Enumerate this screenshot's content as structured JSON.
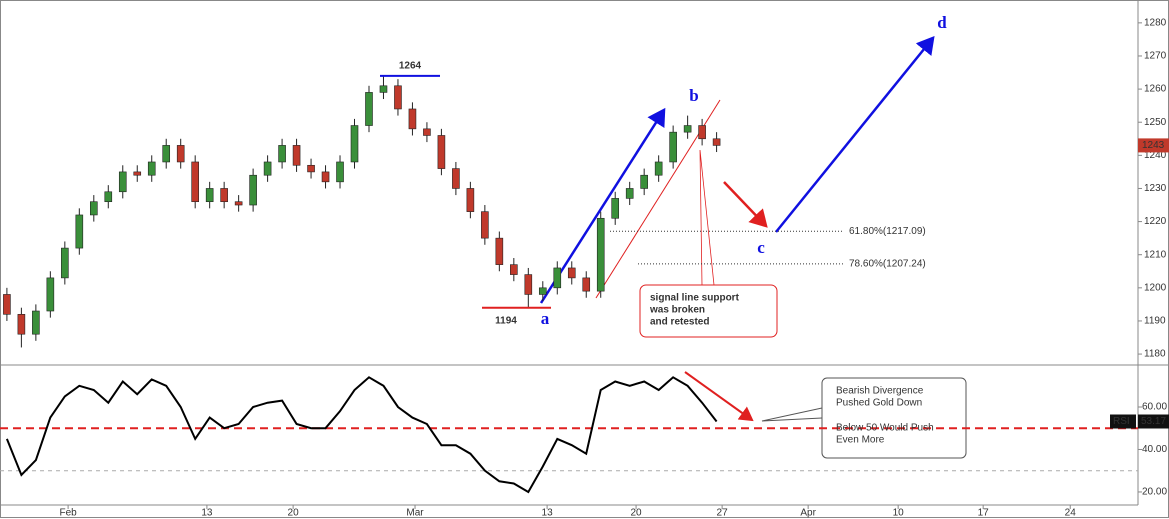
{
  "chart_data": [
    {
      "type": "candlestick",
      "x": [
        0.4,
        1.24,
        2.08,
        2.92,
        3.76,
        4.6,
        5.44,
        6.28,
        7.12,
        7.96,
        8.8,
        9.64,
        10.48,
        11.32,
        12.16,
        13,
        13.84,
        14.68,
        15.52,
        16.36,
        17.2,
        18.04,
        18.88,
        19.72,
        20.56,
        21.4,
        22.24,
        23.08,
        23.92,
        24.76,
        25.6,
        26.44,
        27.28,
        28.12,
        28.96,
        29.8,
        30.64,
        31.48,
        32.32,
        33.16,
        34,
        34.84,
        35.68,
        36.52,
        37.36,
        38.2,
        39.04,
        39.88,
        40.72,
        41.56
      ],
      "open": [
        1198,
        1192,
        1186,
        1193,
        1203,
        1212,
        1222,
        1226,
        1229,
        1235,
        1234,
        1238,
        1243,
        1238,
        1226,
        1230,
        1226,
        1225,
        1234,
        1238,
        1243,
        1237,
        1235,
        1232,
        1238,
        1249,
        1259,
        1261,
        1254,
        1248,
        1246,
        1236,
        1230,
        1223,
        1215,
        1207,
        1204,
        1198,
        1200,
        1206,
        1203,
        1199,
        1221,
        1227,
        1230,
        1234,
        1238,
        1247,
        1249,
        1245
      ],
      "high": [
        1200,
        1194,
        1195,
        1205,
        1214,
        1224,
        1228,
        1231,
        1237,
        1237,
        1240,
        1245,
        1245,
        1240,
        1232,
        1232,
        1228,
        1236,
        1240,
        1245,
        1245,
        1239,
        1237,
        1240,
        1251,
        1261,
        1264,
        1263,
        1256,
        1250,
        1248,
        1238,
        1232,
        1225,
        1217,
        1209,
        1206,
        1202,
        1208,
        1208,
        1205,
        1223,
        1229,
        1232,
        1236,
        1240,
        1249,
        1252,
        1251,
        1247
      ],
      "low": [
        1190,
        1182,
        1184,
        1191,
        1201,
        1210,
        1220,
        1224,
        1227,
        1232,
        1232,
        1236,
        1236,
        1224,
        1224,
        1224,
        1223,
        1223,
        1232,
        1236,
        1235,
        1233,
        1230,
        1230,
        1236,
        1247,
        1257,
        1252,
        1246,
        1244,
        1234,
        1228,
        1221,
        1213,
        1205,
        1202,
        1194,
        1196,
        1198,
        1201,
        1197,
        1197,
        1219,
        1225,
        1228,
        1232,
        1236,
        1245,
        1243,
        1241
      ],
      "close": [
        1192,
        1186,
        1193,
        1203,
        1212,
        1222,
        1226,
        1229,
        1235,
        1234,
        1238,
        1243,
        1238,
        1226,
        1230,
        1226,
        1225,
        1234,
        1238,
        1243,
        1237,
        1235,
        1232,
        1238,
        1249,
        1259,
        1261,
        1254,
        1248,
        1246,
        1236,
        1230,
        1223,
        1215,
        1207,
        1204,
        1198,
        1200,
        1206,
        1203,
        1199,
        1221,
        1227,
        1230,
        1234,
        1238,
        1247,
        1249,
        1245,
        1243
      ],
      "up_color": "#3a8f3a",
      "down_color": "#c0392b",
      "xlim": [
        0,
        66
      ],
      "ylim": [
        1176.7,
        1286.9
      ],
      "yticks": [
        1180,
        1190,
        1200,
        1210,
        1220,
        1230,
        1240,
        1250,
        1260,
        1270,
        1280
      ],
      "swing_levels": [
        1264,
        1194
      ],
      "wave_labels": [
        "a",
        "b",
        "c",
        "d"
      ],
      "fib_levels": [
        {
          "value": 1217.09,
          "label": "61.80%(1217.09)"
        },
        {
          "value": 1207.24,
          "label": "78.60%(1207.24)"
        }
      ],
      "note": [
        "signal line support",
        "was broken",
        "and retested"
      ]
    },
    {
      "type": "line",
      "x": [
        0.4,
        1.24,
        2.08,
        2.92,
        3.76,
        4.6,
        5.44,
        6.28,
        7.12,
        7.96,
        8.8,
        9.64,
        10.48,
        11.32,
        12.16,
        13,
        13.84,
        14.68,
        15.52,
        16.36,
        17.2,
        18.04,
        18.88,
        19.72,
        20.56,
        21.4,
        22.24,
        23.08,
        23.92,
        24.76,
        25.6,
        26.44,
        27.28,
        28.12,
        28.96,
        29.8,
        30.64,
        31.48,
        32.32,
        33.16,
        34,
        34.84,
        35.68,
        36.52,
        37.36,
        38.2,
        39.04,
        39.88,
        40.72,
        41.56
      ],
      "series": [
        {
          "name": "RSI",
          "color": "#000000",
          "values": [
            45,
            28,
            35,
            55,
            65,
            70,
            68,
            62,
            72,
            66,
            73,
            70,
            60,
            45,
            55,
            50,
            52,
            60,
            62,
            63,
            52,
            50,
            50,
            58,
            68,
            74,
            70,
            60,
            55,
            52,
            42,
            42,
            38,
            30,
            25,
            24,
            20,
            32,
            45,
            42,
            38,
            68,
            72,
            70,
            72,
            68,
            74,
            70,
            62,
            53.17
          ]
        }
      ],
      "xlim": [
        0,
        66
      ],
      "ylim": [
        14.8,
        79.3
      ],
      "yticks": [
        {
          "value": 60,
          "label": "60.00"
        },
        {
          "value": 40,
          "label": "40.00"
        },
        {
          "value": 20,
          "label": "20.00"
        }
      ],
      "xticks": [
        {
          "value": 3.95,
          "label": "Feb"
        },
        {
          "value": 12,
          "label": "13"
        },
        {
          "value": 17,
          "label": "20"
        },
        {
          "value": 24.07,
          "label": "Mar"
        },
        {
          "value": 31.73,
          "label": "13"
        },
        {
          "value": 36.89,
          "label": "20"
        },
        {
          "value": 41.88,
          "label": "27"
        },
        {
          "value": 46.87,
          "label": "Apr"
        },
        {
          "value": 52.09,
          "label": "10"
        },
        {
          "value": 57.02,
          "label": "17"
        },
        {
          "value": 62.07,
          "label": "24"
        }
      ],
      "reference_lines": [
        {
          "value": 50,
          "color": "#e02020"
        },
        {
          "value": 30,
          "color": "#aaaaaa"
        }
      ],
      "notes": [
        [
          "Bearish Divergence",
          "Pushed Gold Down"
        ],
        [
          "Below 50 Would Push",
          "Even More"
        ]
      ]
    }
  ]
}
